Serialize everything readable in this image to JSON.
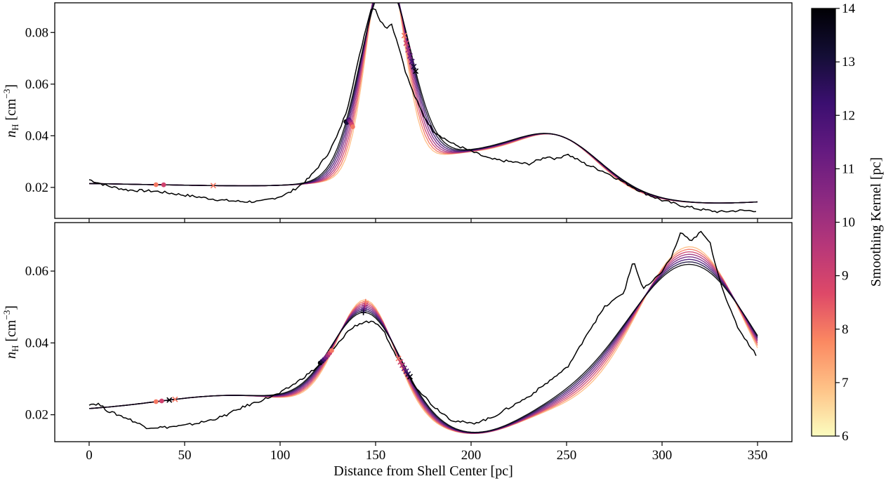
{
  "chart_data": {
    "type": "line",
    "xlabel": "Distance from Shell Center [pc]",
    "xlim": [
      -18,
      368
    ],
    "x_ticks": [
      0,
      50,
      100,
      150,
      200,
      250,
      300,
      350
    ],
    "colorbar": {
      "label": "Smoothing Kernel [pc]",
      "range": [
        6,
        14
      ],
      "ticks": [
        6,
        7,
        8,
        9,
        10,
        11,
        12,
        13,
        14
      ],
      "colormap": "magma_r",
      "stops": [
        "#fcfdbf",
        "#fec287",
        "#fb8861",
        "#de4968",
        "#b73779",
        "#8c2981",
        "#641a80",
        "#3b0f70",
        "#140e36",
        "#000004"
      ]
    },
    "smoothing_kernels": [
      7,
      8,
      9,
      10,
      11,
      12,
      13,
      14
    ],
    "panels": [
      {
        "ylabel_main": "n",
        "ylabel_sub": "H",
        "ylabel_unit": " [cm",
        "ylabel_exp": "−3",
        "ylabel_close": "]",
        "ylim": [
          0.008,
          0.0915
        ],
        "y_ticks": [
          0.02,
          0.04,
          0.06,
          0.08
        ],
        "y_tick_labels": [
          "0.02",
          "0.04",
          "0.06",
          "0.08"
        ],
        "raw_profile": {
          "name": "Observed profile",
          "color": "#000000",
          "x": [
            0,
            10,
            20,
            35,
            45,
            55,
            65,
            70,
            80,
            90,
            100,
            105,
            110,
            115,
            120,
            125,
            130,
            135,
            140,
            145,
            148,
            150,
            152,
            154,
            156,
            158,
            162,
            166,
            170,
            175,
            180,
            190,
            200,
            210,
            220,
            230,
            240,
            245,
            250,
            255,
            260,
            270,
            280,
            290,
            300,
            310,
            320,
            330,
            340,
            350
          ],
          "y": [
            0.023,
            0.0205,
            0.019,
            0.0185,
            0.0175,
            0.0165,
            0.0155,
            0.015,
            0.0145,
            0.0145,
            0.0165,
            0.018,
            0.0205,
            0.0235,
            0.028,
            0.033,
            0.04,
            0.05,
            0.066,
            0.082,
            0.09,
            0.089,
            0.085,
            0.083,
            0.082,
            0.084,
            0.075,
            0.064,
            0.056,
            0.048,
            0.042,
            0.037,
            0.034,
            0.031,
            0.03,
            0.029,
            0.032,
            0.031,
            0.033,
            0.031,
            0.029,
            0.026,
            0.022,
            0.018,
            0.015,
            0.013,
            0.0115,
            0.0105,
            0.011,
            0.011
          ]
        },
        "smoothed_model": {
          "baseline": {
            "a": 0.0215,
            "s": 0.0045,
            "k1": 40
          },
          "peaks": [
            {
              "center": 155,
              "sigma_base": 9.5,
              "sigma_slope": 0.55,
              "amp_base": 0.0835,
              "amp_slope": -0.0017
            },
            {
              "center": 247,
              "sigma_base": 20,
              "sigma_slope": 0.3,
              "amp_base": 0.0152,
              "amp_slope": 0
            },
            {
              "center": 200,
              "sigma_base": 40,
              "sigma_slope": 0,
              "amp_base": 0.014,
              "amp_slope": 0
            },
            {
              "center": 320,
              "sigma_base": 40,
              "sigma_slope": 0,
              "amp_base": -0.0035,
              "amp_slope": 0
            }
          ]
        },
        "markers": [
          {
            "shape": "dot",
            "x": 134.5,
            "kernel": 14
          },
          {
            "shape": "dot",
            "x": 135,
            "kernel": 13
          },
          {
            "shape": "dot",
            "x": 136,
            "kernel": 12
          },
          {
            "shape": "dot",
            "x": 136.5,
            "kernel": 11
          },
          {
            "shape": "dot",
            "x": 137,
            "kernel": 10
          },
          {
            "shape": "dot",
            "x": 137.5,
            "kernel": 9
          },
          {
            "shape": "dot",
            "x": 138,
            "kernel": 8
          },
          {
            "shape": "dot",
            "x": 35,
            "kernel": 8
          },
          {
            "shape": "dot",
            "x": 39,
            "kernel": 9
          },
          {
            "shape": "plus",
            "x": 153.5,
            "kernel": 14
          },
          {
            "shape": "plus",
            "x": 153.6,
            "kernel": 13
          },
          {
            "shape": "plus",
            "x": 153.7,
            "kernel": 12
          },
          {
            "shape": "plus",
            "x": 153.8,
            "kernel": 11
          },
          {
            "shape": "plus",
            "x": 153.9,
            "kernel": 10
          },
          {
            "shape": "plus",
            "x": 154,
            "kernel": 9
          },
          {
            "shape": "plus",
            "x": 154.1,
            "kernel": 8
          },
          {
            "shape": "cross",
            "x": 171,
            "kernel": 14
          },
          {
            "shape": "cross",
            "x": 170,
            "kernel": 13
          },
          {
            "shape": "cross",
            "x": 169,
            "kernel": 12
          },
          {
            "shape": "cross",
            "x": 168,
            "kernel": 11
          },
          {
            "shape": "cross",
            "x": 167,
            "kernel": 10
          },
          {
            "shape": "cross",
            "x": 166,
            "kernel": 9
          },
          {
            "shape": "cross",
            "x": 165,
            "kernel": 8
          },
          {
            "shape": "cross",
            "x": 65,
            "kernel": 8
          }
        ]
      },
      {
        "ylabel_main": "n",
        "ylabel_sub": "H",
        "ylabel_unit": " [cm",
        "ylabel_exp": "−3",
        "ylabel_close": "]",
        "ylim": [
          0.0125,
          0.0735
        ],
        "y_ticks": [
          0.02,
          0.04,
          0.06
        ],
        "y_tick_labels": [
          "0.02",
          "0.04",
          "0.06"
        ],
        "raw_profile": {
          "name": "Observed profile",
          "color": "#000000",
          "x": [
            0,
            5,
            10,
            20,
            30,
            40,
            50,
            60,
            70,
            80,
            90,
            100,
            110,
            120,
            125,
            130,
            135,
            140,
            145,
            150,
            155,
            160,
            165,
            170,
            180,
            190,
            200,
            210,
            220,
            230,
            240,
            250,
            255,
            260,
            265,
            270,
            275,
            280,
            285,
            290,
            295,
            300,
            305,
            310,
            315,
            320,
            325,
            330,
            335,
            340,
            345,
            350
          ],
          "y": [
            0.023,
            0.023,
            0.021,
            0.019,
            0.0165,
            0.0165,
            0.017,
            0.018,
            0.0195,
            0.022,
            0.024,
            0.026,
            0.0295,
            0.0335,
            0.0365,
            0.0395,
            0.043,
            0.045,
            0.046,
            0.0455,
            0.0425,
            0.037,
            0.033,
            0.0285,
            0.0225,
            0.0185,
            0.0175,
            0.019,
            0.022,
            0.025,
            0.029,
            0.033,
            0.037,
            0.042,
            0.046,
            0.05,
            0.052,
            0.054,
            0.063,
            0.055,
            0.057,
            0.06,
            0.064,
            0.071,
            0.068,
            0.071,
            0.068,
            0.058,
            0.05,
            0.044,
            0.04,
            0.036
          ]
        },
        "smoothed_model": {
          "baseline": {
            "a": 0.0205,
            "s": 0.005,
            "k1": 40
          },
          "peaks": [
            {
              "center": 145,
              "sigma_base": 15,
              "sigma_slope": 0.45,
              "amp_base": 0.0315,
              "amp_slope": -0.0005
            },
            {
              "center": 315,
              "sigma_base": 28,
              "sigma_slope": 0.8,
              "amp_base": 0.0505,
              "amp_slope": -0.0007
            },
            {
              "center": 80,
              "sigma_base": 45,
              "sigma_slope": 0,
              "amp_base": 0.006,
              "amp_slope": 0
            },
            {
              "center": 245,
              "sigma_base": 30,
              "sigma_slope": 0,
              "amp_base": 0.004,
              "amp_slope": 0
            },
            {
              "center": 205,
              "sigma_base": 22,
              "sigma_slope": 0,
              "amp_base": -0.0045,
              "amp_slope": 0
            }
          ]
        },
        "markers": [
          {
            "shape": "dot",
            "x": 121,
            "kernel": 14
          },
          {
            "shape": "dot",
            "x": 122,
            "kernel": 13
          },
          {
            "shape": "dot",
            "x": 123,
            "kernel": 12
          },
          {
            "shape": "dot",
            "x": 124,
            "kernel": 11
          },
          {
            "shape": "dot",
            "x": 125,
            "kernel": 10
          },
          {
            "shape": "dot",
            "x": 126,
            "kernel": 9
          },
          {
            "shape": "dot",
            "x": 127,
            "kernel": 8
          },
          {
            "shape": "dot",
            "x": 35,
            "kernel": 8
          },
          {
            "shape": "dot",
            "x": 38,
            "kernel": 9
          },
          {
            "shape": "plus",
            "x": 143.6,
            "kernel": 14
          },
          {
            "shape": "plus",
            "x": 143.8,
            "kernel": 13
          },
          {
            "shape": "plus",
            "x": 144,
            "kernel": 12
          },
          {
            "shape": "plus",
            "x": 144.2,
            "kernel": 11
          },
          {
            "shape": "plus",
            "x": 144.4,
            "kernel": 10
          },
          {
            "shape": "plus",
            "x": 144.6,
            "kernel": 9
          },
          {
            "shape": "plus",
            "x": 144.8,
            "kernel": 8
          },
          {
            "shape": "cross",
            "x": 168,
            "kernel": 14
          },
          {
            "shape": "cross",
            "x": 167,
            "kernel": 13
          },
          {
            "shape": "cross",
            "x": 166,
            "kernel": 12
          },
          {
            "shape": "cross",
            "x": 165,
            "kernel": 11
          },
          {
            "shape": "cross",
            "x": 164,
            "kernel": 10
          },
          {
            "shape": "cross",
            "x": 163,
            "kernel": 9
          },
          {
            "shape": "cross",
            "x": 162,
            "kernel": 8
          },
          {
            "shape": "cross",
            "x": 42,
            "kernel": 14
          },
          {
            "shape": "cross",
            "x": 45,
            "kernel": 8
          }
        ]
      }
    ]
  }
}
